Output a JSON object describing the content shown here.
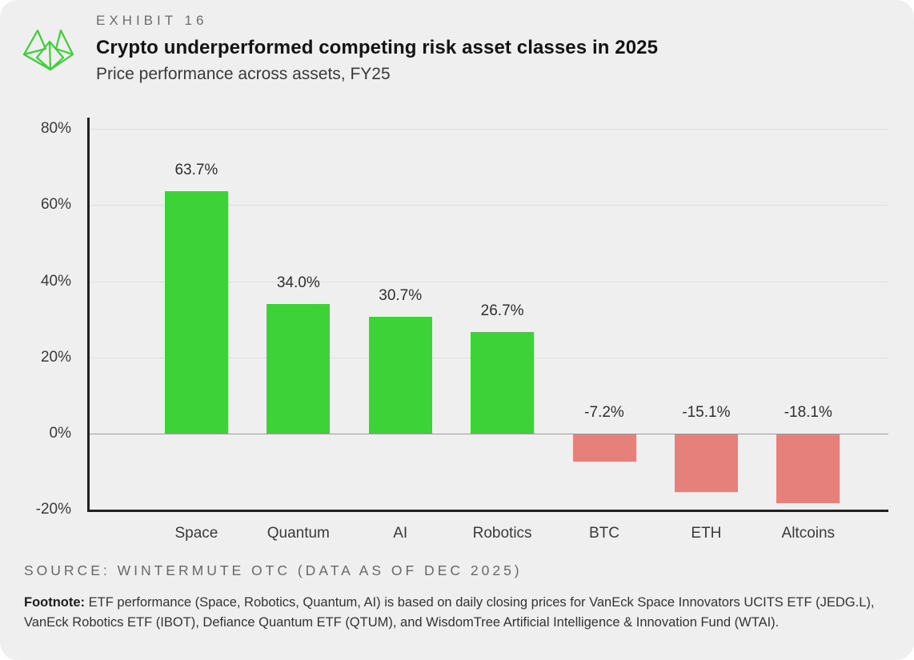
{
  "header": {
    "exhibit_label": "EXHIBIT 16",
    "title": "Crypto underperformed competing risk asset classes in 2025",
    "subtitle": "Price performance across assets, FY25",
    "logo_name": "wintermute-logo",
    "logo_color": "#3ccf36"
  },
  "chart_data": {
    "type": "bar",
    "title": "Crypto underperformed competing risk asset classes in 2025",
    "subtitle": "Price performance across assets, FY25",
    "categories": [
      "Space",
      "Quantum",
      "AI",
      "Robotics",
      "BTC",
      "ETH",
      "Altcoins"
    ],
    "values": [
      63.7,
      34.0,
      30.7,
      26.7,
      -7.2,
      -15.1,
      -18.1
    ],
    "value_labels": [
      "63.7%",
      "34.0%",
      "30.7%",
      "26.7%",
      "-7.2%",
      "-15.1%",
      "-18.1%"
    ],
    "xlabel": "",
    "ylabel": "",
    "ylim": [
      -20,
      83
    ],
    "yticks": [
      80,
      60,
      40,
      20,
      0,
      -20
    ],
    "ytick_labels": [
      "80%",
      "60%",
      "40%",
      "20%",
      "0%",
      "-20%"
    ],
    "grid": true,
    "legend_position": "none",
    "colors": {
      "positive_bar": "#3dd338",
      "negative_bar": "#e5807b",
      "axis": "#212121",
      "gridline": "#dfdfdf",
      "zero_line": "#9a9a9a",
      "background": "#efefef"
    }
  },
  "source": {
    "text": "SOURCE: WINTERMUTE OTC (DATA AS OF DEC 2025)"
  },
  "footnote": {
    "label": "Footnote:",
    "text": " ETF performance (Space, Robotics, Quantum, AI) is based on daily closing prices for VanEck Space Innovators UCITS ETF (JEDG.L), VanEck Robotics ETF (IBOT), Defiance Quantum ETF (QTUM), and WisdomTree Artificial Intelligence & Innovation Fund (WTAI)."
  }
}
